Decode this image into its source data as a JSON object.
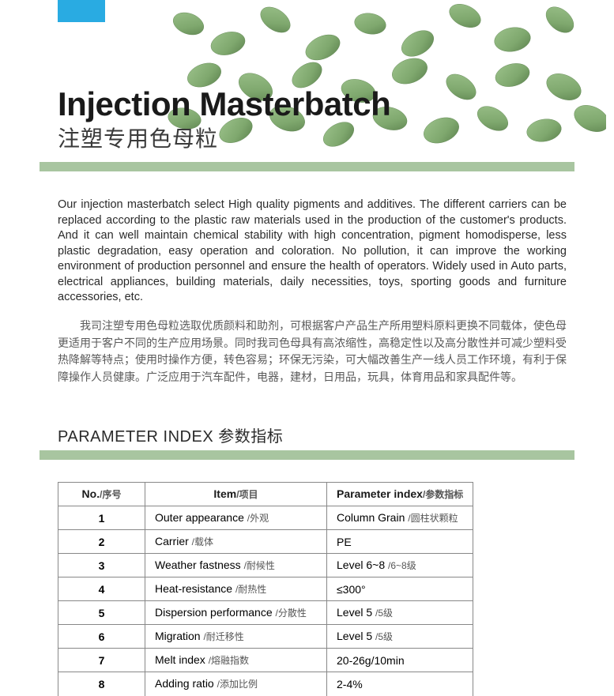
{
  "colors": {
    "blue_tab": "#29abe2",
    "green_bar": "#a8c5a0",
    "pellet_fill": "#7fa86e",
    "pellet_shadow": "#5e8450",
    "text_main": "#1a1a1a",
    "text_sub": "#5a5a5a"
  },
  "title": {
    "en": "Injection Masterbatch",
    "cn": "注塑专用色母粒"
  },
  "description": {
    "en": "Our injection masterbatch select High quality pigments and additives. The different carriers can be replaced according to the plastic raw materials used in the production of the customer's products. And it can well maintain chemical stability with high concentration, pigment homodisperse, less plastic degradation, easy operation and coloration. No pollution, it can improve the working environment of production personnel and ensure the health of operators. Widely used in Auto parts, electrical appliances, building materials, daily necessities, toys, sporting goods and furniture accessories, etc.",
    "cn": "我司注塑专用色母粒选取优质颜料和助剂，可根据客户产品生产所用塑料原料更换不同载体，使色母更适用于客户不同的生产应用场景。同时我司色母具有高浓缩性，高稳定性以及高分散性并可减少塑料受热降解等特点；使用时操作方便，转色容易；环保无污染，可大幅改善生产一线人员工作环境，有利于保障操作人员健康。广泛应用于汽车配件，电器，建材，日用品，玩具，体育用品和家具配件等。"
  },
  "section": {
    "en": "PARAMETER INDEX",
    "cn": "参数指标"
  },
  "table": {
    "headers": {
      "no_en": "No.",
      "no_cn": "/序号",
      "item_en": "Item",
      "item_cn": "/项目",
      "param_en": "Parameter index",
      "param_cn": "/参数指标"
    },
    "rows": [
      {
        "no": "1",
        "item_en": "Outer appearance",
        "item_cn": "/外观",
        "val_en": "Column Grain",
        "val_cn": "/圆柱状颗粒"
      },
      {
        "no": "2",
        "item_en": "Carrier",
        "item_cn": "/载体",
        "val_en": "PE",
        "val_cn": ""
      },
      {
        "no": "3",
        "item_en": "Weather fastness",
        "item_cn": "/耐候性",
        "val_en": "Level 6~8",
        "val_cn": "/6~8级"
      },
      {
        "no": "4",
        "item_en": "Heat-resistance",
        "item_cn": "/耐热性",
        "val_en": "≤300°",
        "val_cn": ""
      },
      {
        "no": "5",
        "item_en": "Dispersion performance",
        "item_cn": "/分散性",
        "val_en": "Level 5",
        "val_cn": "/5级"
      },
      {
        "no": "6",
        "item_en": "Migration",
        "item_cn": "/耐迁移性",
        "val_en": "Level 5",
        "val_cn": "/5级"
      },
      {
        "no": "7",
        "item_en": "Melt index",
        "item_cn": "/熔融指数",
        "val_en": "20-26g/10min",
        "val_cn": ""
      },
      {
        "no": "8",
        "item_en": "Adding ratio",
        "item_cn": "/添加比例",
        "val_en": "2-4%",
        "val_cn": ""
      }
    ]
  }
}
